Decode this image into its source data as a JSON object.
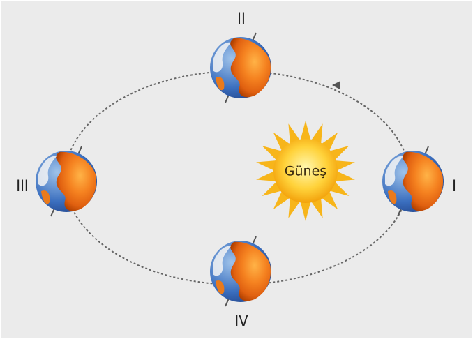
{
  "sun": {
    "label": "Güneş"
  },
  "positions": [
    {
      "label": "I"
    },
    {
      "label": "II"
    },
    {
      "label": "III"
    },
    {
      "label": "IV"
    }
  ]
}
